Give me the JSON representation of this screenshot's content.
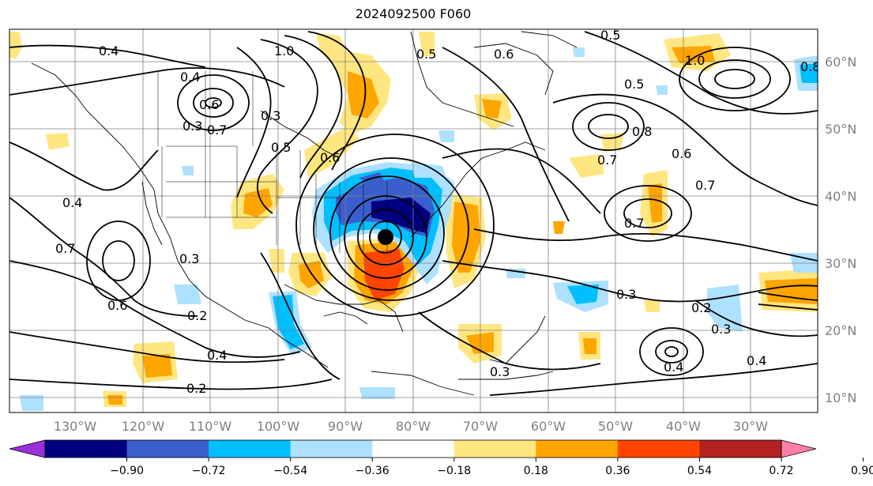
{
  "title": "2024092500 F060",
  "longitude_labels": [
    "130°W",
    "120°W",
    "110°W",
    "100°W",
    "90°W",
    "80°W",
    "70°W",
    "60°W",
    "50°W",
    "40°W",
    "30°W"
  ],
  "latitude_labels": [
    "60°N",
    "50°N",
    "40°N",
    "30°N",
    "20°N",
    "10°N"
  ],
  "colorbar": {
    "ticks": [
      "−0.90",
      "−0.72",
      "−0.54",
      "−0.36",
      "−0.18",
      "0.18",
      "0.36",
      "0.54",
      "0.72",
      "0.90"
    ],
    "colors": [
      "#9b30d8",
      "#00007f",
      "#3a5fcd",
      "#00bfff",
      "#aee0ff",
      "#ffffff",
      "#ffe680",
      "#ffa500",
      "#ff4500",
      "#b22222",
      "#ff7fab"
    ],
    "under_color": "#9b30d8",
    "over_color": "#ff7fab"
  },
  "contour_labels": [
    "0.4",
    "0.4",
    "1.0",
    "0.2",
    "0.6",
    "0.5",
    "0.6",
    "1.0",
    "0.5",
    "0.3",
    "0.7",
    "0.3",
    "0.4",
    "0.7",
    "0.3",
    "0.6",
    "0.7",
    "0.3",
    "0.6",
    "0.5",
    "0.8",
    "0.7",
    "0.6",
    "0.7",
    "0.4",
    "0.2",
    "0.3",
    "0.8",
    "0.4",
    "0.2",
    "0.4",
    "0.3",
    "0.5"
  ],
  "legend": {
    "storm_center_icon": "storm-center-marker"
  }
}
